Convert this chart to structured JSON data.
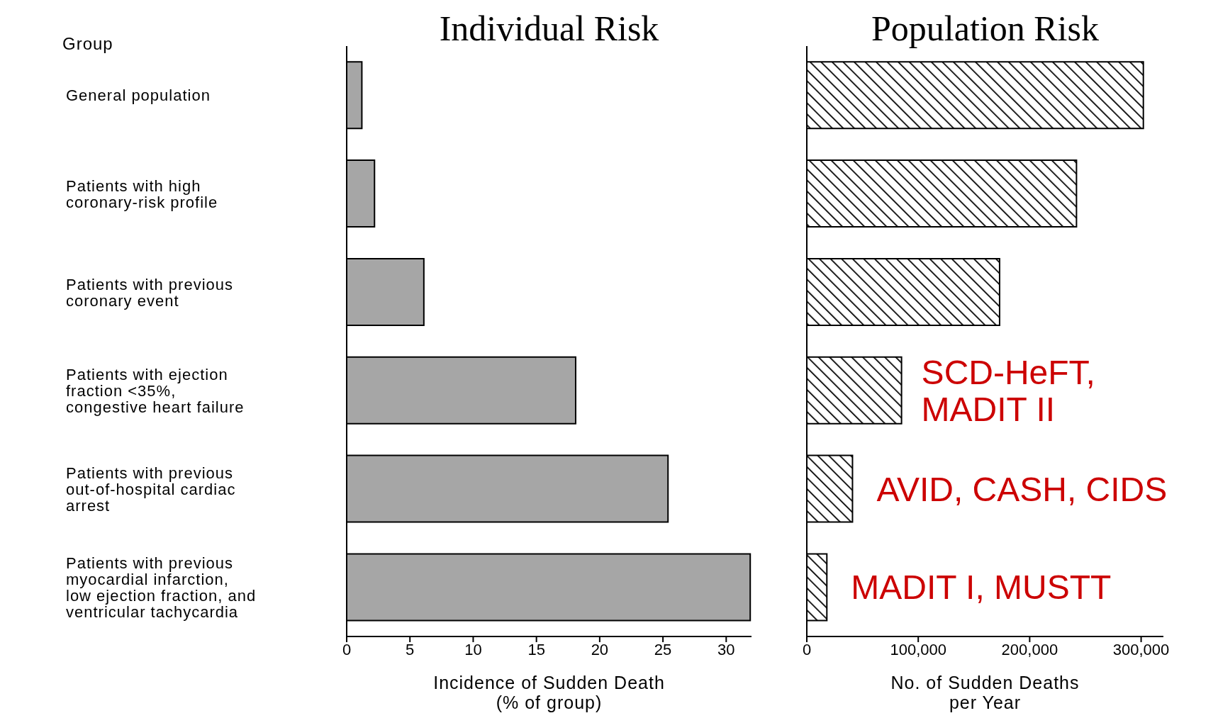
{
  "chart_data": [
    {
      "type": "bar",
      "orientation": "horizontal",
      "title": "Individual Risk",
      "ylabel": "Group",
      "xlabel": "Incidence of Sudden Death\n(% of group)",
      "categories": [
        "General population",
        "Patients with high\ncoronary-risk profile",
        "Patients with previous\ncoronary event",
        "Patients with ejection\nfraction <35%,\ncongestive heart failure",
        "Patients with previous\nout-of-hospital cardiac\narrest",
        "Patients with previous\nmyocardial infarction,\nlow ejection fraction, and\nventricular tachycardia"
      ],
      "values": [
        1.2,
        2.2,
        6.1,
        18.1,
        25.4,
        31.9
      ],
      "color": "#a6a6a6",
      "xlim": [
        0,
        32
      ],
      "xticks": [
        0,
        5,
        10,
        15,
        20,
        25,
        30
      ]
    },
    {
      "type": "bar",
      "orientation": "horizontal",
      "title": "Population Risk",
      "xlabel": "No. of Sudden Deaths\nper Year",
      "categories": [
        "General population",
        "Patients with high\ncoronary-risk profile",
        "Patients with previous\ncoronary event",
        "Patients with ejection\nfraction <35%,\ncongestive heart failure",
        "Patients with previous\nout-of-hospital cardiac\narrest",
        "Patients with previous\nmyocardial infarction,\nlow ejection fraction, and\nventricular tachycardia"
      ],
      "values": [
        302000,
        242000,
        173000,
        85000,
        41000,
        18000
      ],
      "color": "#000000",
      "xlim": [
        0,
        320000
      ],
      "xticks": [
        0,
        {
          "value": 100000,
          "label": "100,000"
        },
        {
          "value": 200000,
          "label": "200,000"
        },
        {
          "value": 300000,
          "label": "300,000"
        }
      ],
      "tick_labels": "x",
      "annotations": [
        {
          "text": "SCD-HeFT,\nMADIT II",
          "x": 85000,
          "y": "Patients with ejection\nfraction <35%,\ncongestive heart failure"
        },
        {
          "text": "AVID, CASH, CIDS",
          "x": 41000,
          "y": "Patients with previous\nout-of-hospital cardiac\narrest"
        },
        {
          "text": "MADIT I, MUSTT",
          "x": 18000,
          "y": "Patients with previous\nmyocardial infarction,\nlow ejection fraction, and\nventricular tachycardia"
        }
      ]
    }
  ]
}
